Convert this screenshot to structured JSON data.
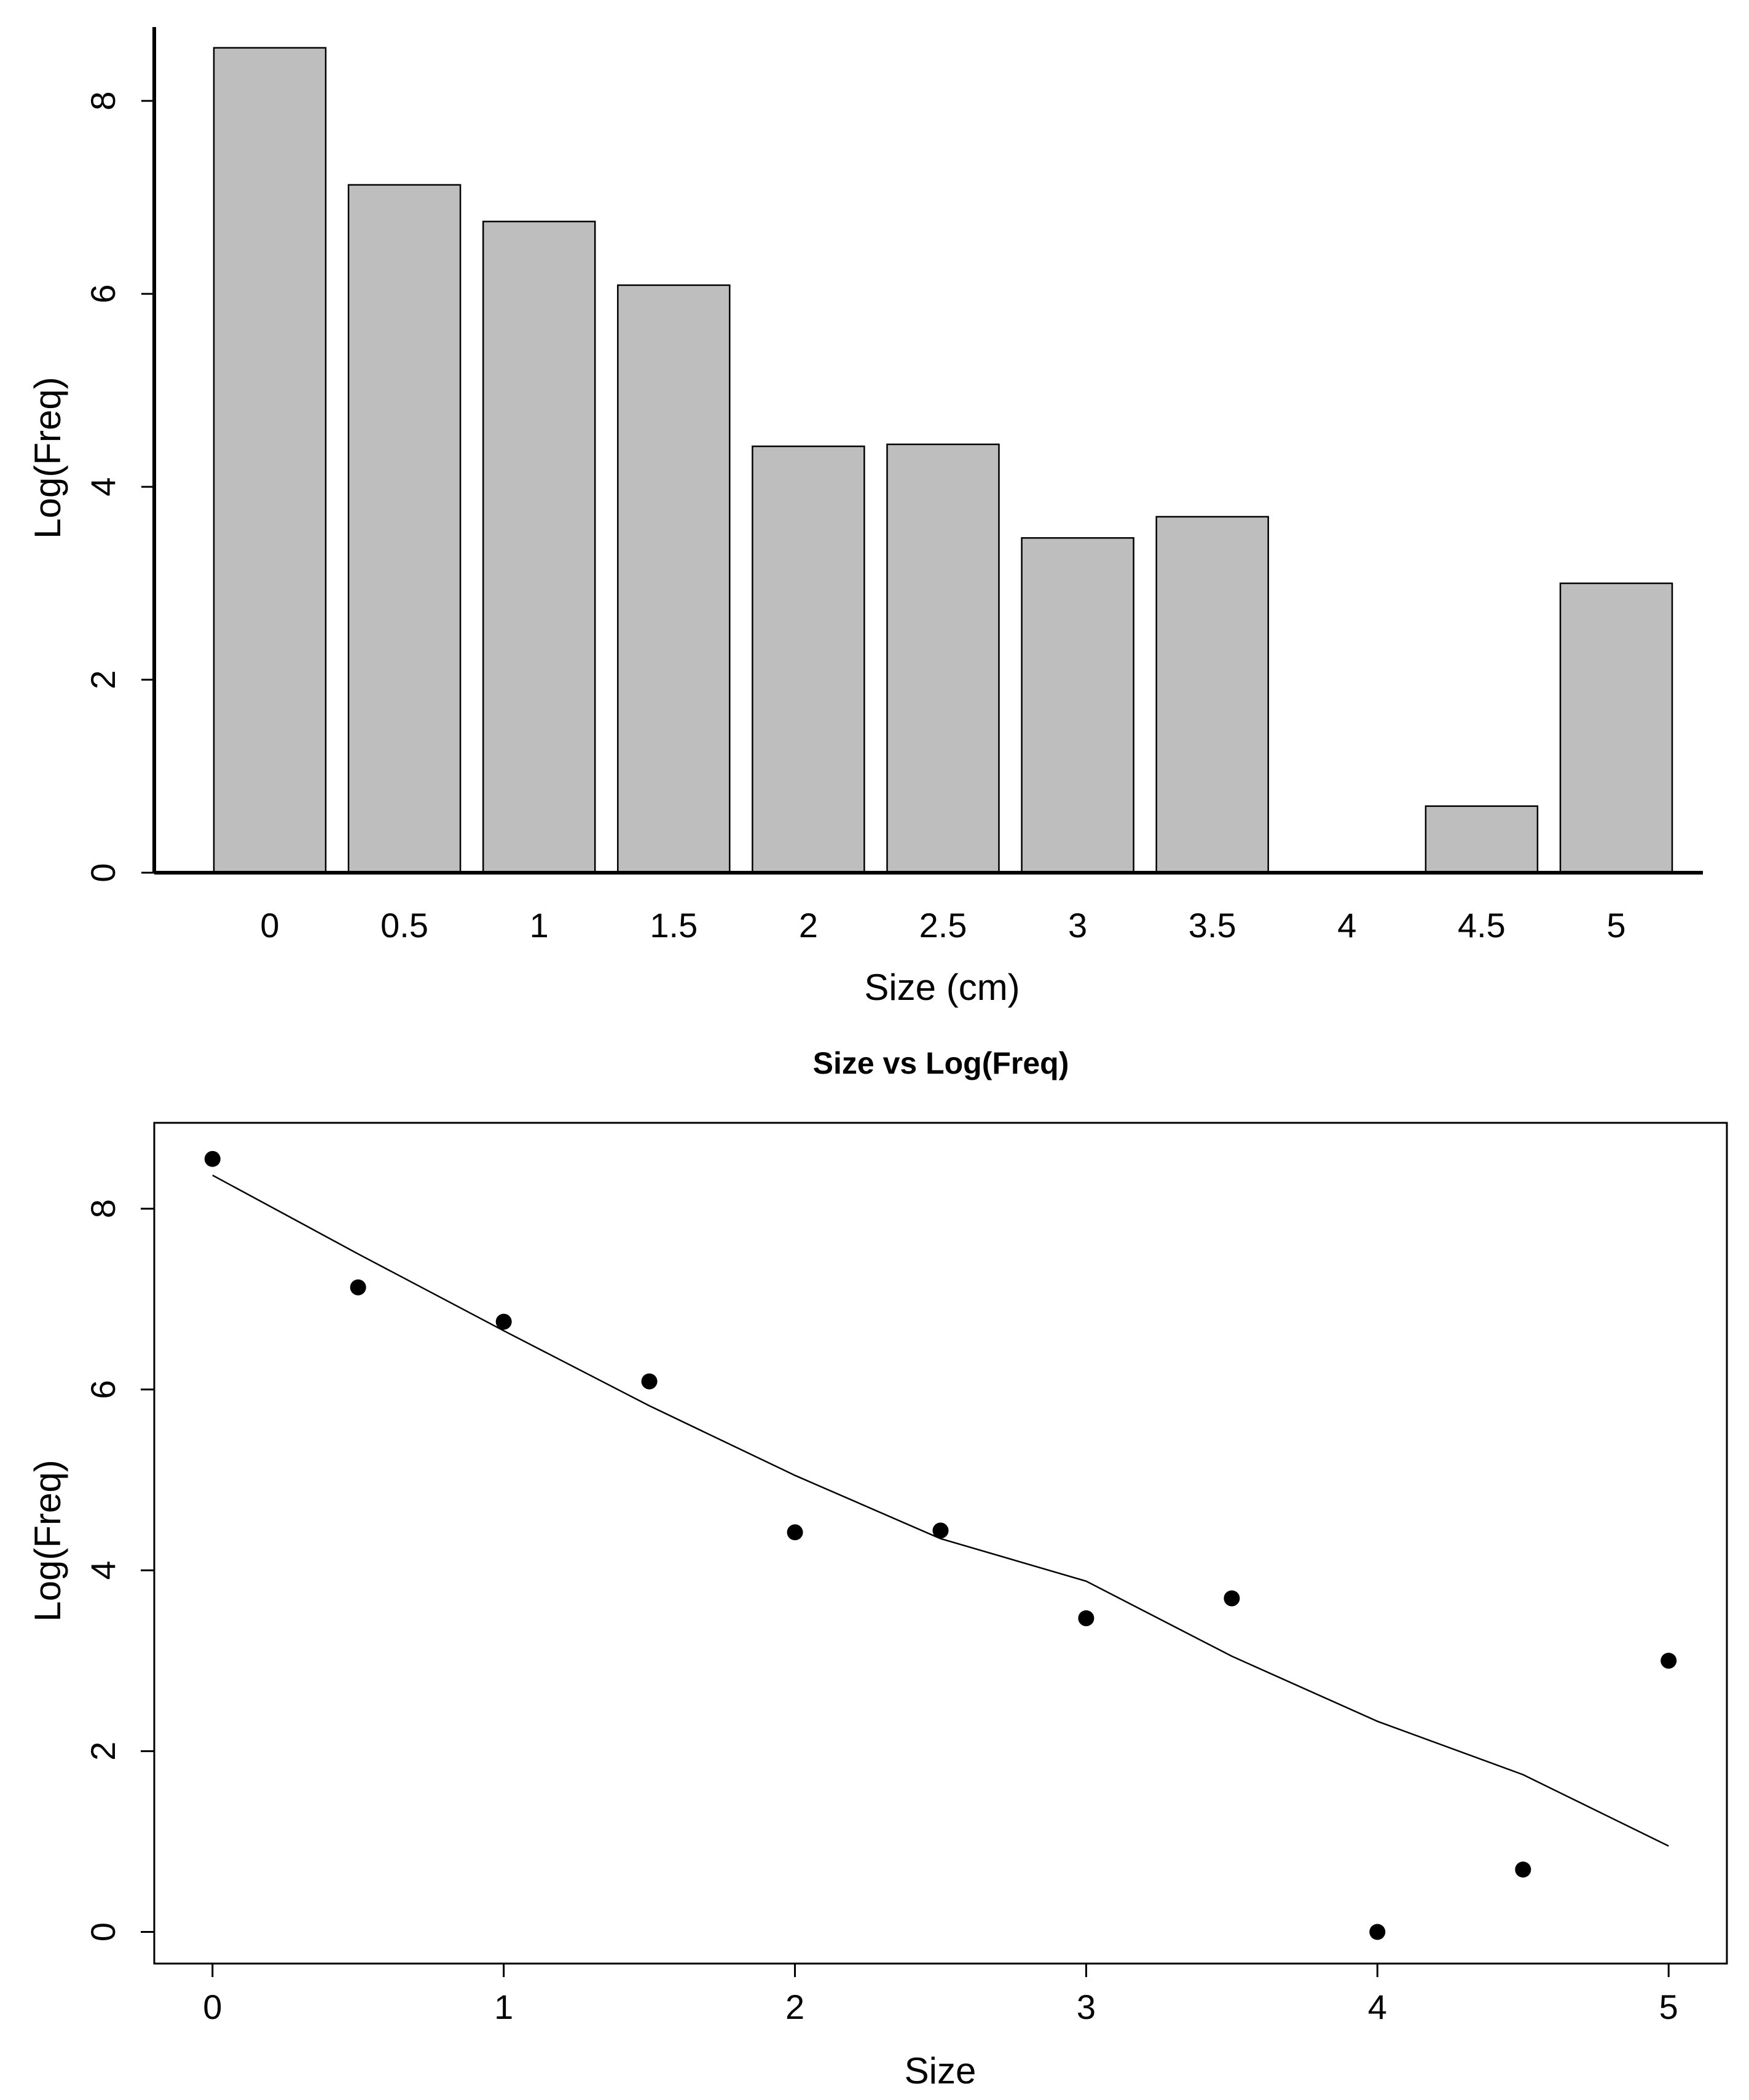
{
  "chart_data": [
    {
      "type": "bar",
      "title": "",
      "categories": [
        "0",
        "0.5",
        "1",
        "1.5",
        "2",
        "2.5",
        "3",
        "3.5",
        "4",
        "4.5",
        "5"
      ],
      "values": [
        8.55,
        7.13,
        6.75,
        6.09,
        4.42,
        4.44,
        3.47,
        3.69,
        0,
        0.69,
        3.0
      ],
      "xlabel": "Size (cm)",
      "ylabel": "Log(Freq)",
      "ylim": [
        0,
        8.6
      ],
      "yticks": [
        0,
        2,
        4,
        6,
        8
      ],
      "grid": false,
      "bar_color": "#bebebe",
      "edge_color": "#000000"
    },
    {
      "type": "scatter",
      "title": "Size vs Log(Freq)",
      "x": [
        0,
        0.5,
        1,
        1.5,
        2,
        2.5,
        3,
        3.5,
        4,
        4.5,
        5
      ],
      "y": [
        8.55,
        7.13,
        6.75,
        6.09,
        4.42,
        4.44,
        3.47,
        3.69,
        0,
        0.69,
        3.0
      ],
      "trend_line": {
        "x": [
          0,
          0.5,
          1,
          1.5,
          2,
          2.5,
          3,
          3.5,
          4,
          4.5,
          5
        ],
        "y": [
          8.37,
          7.5,
          6.65,
          5.82,
          5.05,
          4.35,
          3.88,
          3.05,
          2.33,
          1.74,
          0.95
        ]
      },
      "xlabel": "Size",
      "ylabel": "Log(Freq)",
      "xlim": [
        -0.2,
        5.2
      ],
      "ylim": [
        -0.35,
        8.95
      ],
      "xticks": [
        0,
        1,
        2,
        3,
        4,
        5
      ],
      "yticks": [
        0,
        2,
        4,
        6,
        8
      ],
      "grid": false,
      "point_color": "#000000"
    }
  ]
}
